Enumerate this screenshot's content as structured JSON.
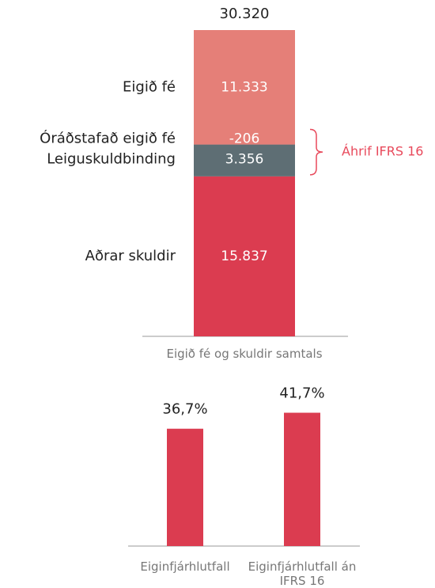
{
  "chart_data": [
    {
      "type": "stacked_bar",
      "categories": [
        "Eigið fé og skuldir samtals"
      ],
      "total": 30320,
      "total_label": "30.320",
      "series": [
        {
          "name": "Aðrar skuldir",
          "color": "#db3c50",
          "values": [
            15837
          ],
          "value_labels": [
            "15.837"
          ]
        },
        {
          "name": "Leiguskuldbinding",
          "color": "#5e6e74",
          "values": [
            3356
          ],
          "value_labels": [
            "3.356"
          ]
        },
        {
          "name": "Óráðstafað eigið fé",
          "color": "#939ea3",
          "values": [
            -206
          ],
          "value_labels": [
            "-206"
          ]
        },
        {
          "name": "Eigið fé",
          "color": "#e57f78",
          "values": [
            11333
          ],
          "value_labels": [
            "11.333"
          ]
        }
      ],
      "annotation": "Áhrif IFRS 16",
      "annotation_color": "#e8495b"
    },
    {
      "type": "bar",
      "categories": [
        "Eiginfjárhlutfall",
        "Eiginfjárhlutfall án IFRS 16"
      ],
      "values": [
        36.7,
        41.7
      ],
      "value_labels": [
        "36,7%",
        "41,7%"
      ],
      "color": "#db3c50"
    }
  ]
}
